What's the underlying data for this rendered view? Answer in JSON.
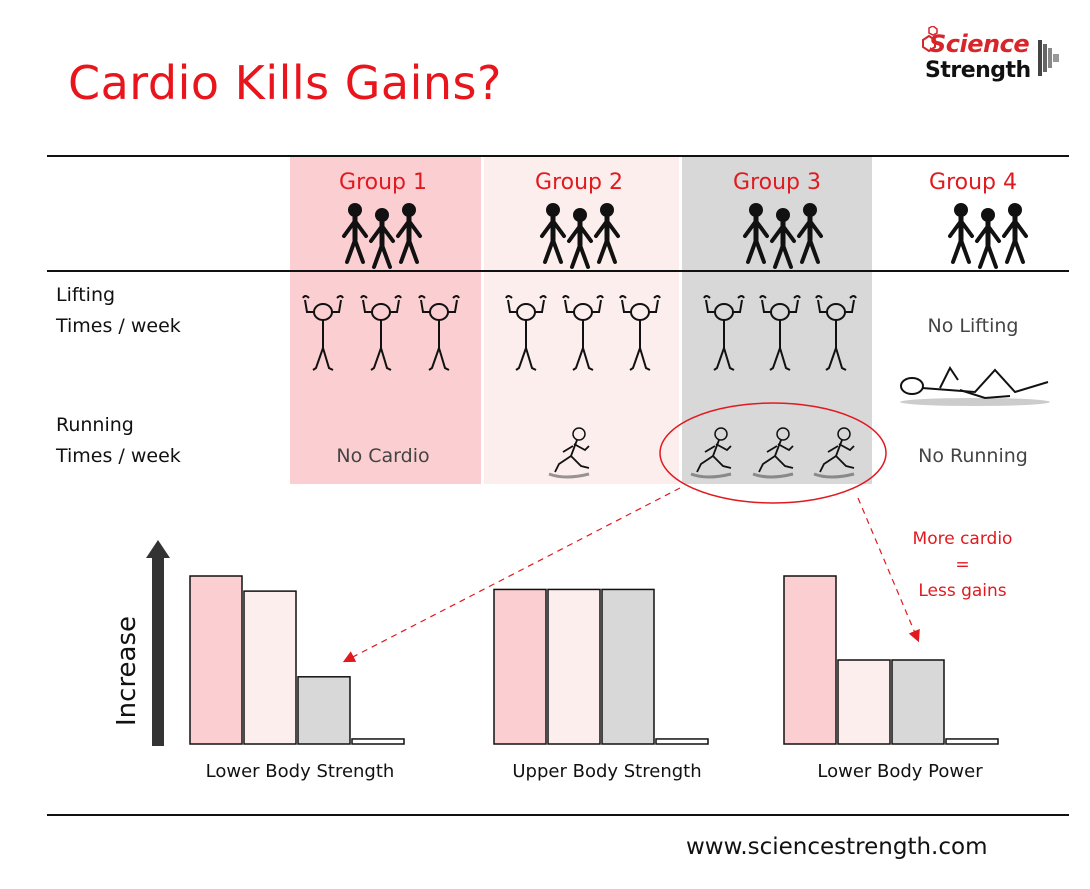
{
  "title": "Cardio Kills Gains?",
  "logo": {
    "line1": "Science",
    "line2": "Strength"
  },
  "groups": [
    "Group 1",
    "Group 2",
    "Group 3",
    "Group 4"
  ],
  "rows": {
    "lifting_label": "Lifting",
    "lifting_sub": "Times / week",
    "running_label": "Running",
    "running_sub": "Times / week"
  },
  "cells": {
    "g4_lifting": "No Lifting",
    "g1_running": "No Cardio",
    "g4_running": "No Running"
  },
  "annotation": {
    "line1": "More cardio",
    "line2": "=",
    "line3": "Less gains"
  },
  "colors": {
    "group1": "#fbcfd2",
    "group2": "#fdeeee",
    "group3": "#d8d8d8",
    "group4": "#ffffff",
    "accent": "#e01a1f"
  },
  "chart_data": {
    "type": "bar",
    "ylabel": "Increase",
    "series_colors": [
      "#fbcfd2",
      "#fdeeee",
      "#d8d8d8",
      "#ffffff"
    ],
    "charts": [
      {
        "label": "Lower Body Strength",
        "values": [
          1.0,
          0.91,
          0.4,
          0.03
        ]
      },
      {
        "label": "Upper Body Strength",
        "values": [
          0.92,
          0.92,
          0.92,
          0.03
        ]
      },
      {
        "label": "Lower Body Power",
        "values": [
          1.0,
          0.5,
          0.5,
          0.03
        ]
      }
    ]
  },
  "footer_url": "www.sciencestrength.com"
}
